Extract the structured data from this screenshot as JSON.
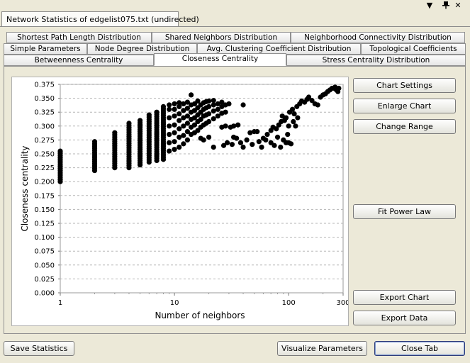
{
  "window": {
    "tab_title": "Network Statistics of edgelist075.txt (undirected)",
    "controls": {
      "menu": "▼",
      "pin": "📌",
      "close": "✕"
    }
  },
  "tabs": {
    "row1": [
      "Shortest Path Length Distribution",
      "Shared Neighbors Distribution",
      "Neighborhood Connectivity Distribution"
    ],
    "row2": [
      "Simple Parameters",
      "Node Degree Distribution",
      "Avg. Clustering Coefficient Distribution",
      "Topological Coefficients"
    ],
    "row3": [
      "Betweenness Centrality",
      "Closeness Centrality",
      "Stress Centrality Distribution"
    ],
    "active": "Closeness Centrality"
  },
  "side_buttons": {
    "chart_settings": "Chart Settings",
    "enlarge_chart": "Enlarge Chart",
    "change_range": "Change Range",
    "fit_power_law": "Fit Power Law",
    "export_chart": "Export Chart",
    "export_data": "Export Data"
  },
  "bottom_buttons": {
    "save_statistics": "Save Statistics",
    "visualize_parameters": "Visualize Parameters",
    "close_tab": "Close Tab"
  },
  "chart_data": {
    "type": "scatter",
    "title": "",
    "xlabel": "Number of neighbors",
    "ylabel": "Closeness centrality",
    "xscale": "log",
    "xlim": [
      1,
      300
    ],
    "ylim": [
      0,
      0.375
    ],
    "xticks": [
      "1",
      "10",
      "100",
      "300"
    ],
    "yticks": [
      "0.000",
      "0.025",
      "0.050",
      "0.075",
      "0.100",
      "0.125",
      "0.150",
      "0.175",
      "0.200",
      "0.225",
      "0.250",
      "0.275",
      "0.300",
      "0.325",
      "0.350",
      "0.375"
    ],
    "grid": "horizontal dashed",
    "point_color": "#000000",
    "columns": [
      {
        "x": 1,
        "ymin": 0.2,
        "ymax": 0.255
      },
      {
        "x": 2,
        "ymin": 0.22,
        "ymax": 0.272
      },
      {
        "x": 3,
        "ymin": 0.225,
        "ymax": 0.288
      },
      {
        "x": 4,
        "ymin": 0.225,
        "ymax": 0.305
      },
      {
        "x": 5,
        "ymin": 0.23,
        "ymax": 0.31
      },
      {
        "x": 6,
        "ymin": 0.235,
        "ymax": 0.32
      },
      {
        "x": 7,
        "ymin": 0.238,
        "ymax": 0.325
      },
      {
        "x": 8,
        "ymin": 0.24,
        "ymax": 0.335
      }
    ],
    "points": [
      [
        9,
        0.255
      ],
      [
        9,
        0.27
      ],
      [
        9,
        0.285
      ],
      [
        9,
        0.3
      ],
      [
        9,
        0.315
      ],
      [
        9,
        0.33
      ],
      [
        9,
        0.338
      ],
      [
        10,
        0.258
      ],
      [
        10,
        0.272
      ],
      [
        10,
        0.288
      ],
      [
        10,
        0.302
      ],
      [
        10,
        0.318
      ],
      [
        10,
        0.33
      ],
      [
        10,
        0.34
      ],
      [
        11,
        0.262
      ],
      [
        11,
        0.28
      ],
      [
        11,
        0.295
      ],
      [
        11,
        0.31
      ],
      [
        11,
        0.322
      ],
      [
        11,
        0.335
      ],
      [
        11,
        0.342
      ],
      [
        12,
        0.268
      ],
      [
        12,
        0.283
      ],
      [
        12,
        0.3
      ],
      [
        12,
        0.315
      ],
      [
        12,
        0.328
      ],
      [
        12,
        0.34
      ],
      [
        13,
        0.275
      ],
      [
        13,
        0.29
      ],
      [
        13,
        0.305
      ],
      [
        13,
        0.318
      ],
      [
        13,
        0.332
      ],
      [
        13,
        0.343
      ],
      [
        14,
        0.285
      ],
      [
        14,
        0.298
      ],
      [
        14,
        0.312
      ],
      [
        14,
        0.325
      ],
      [
        14,
        0.338
      ],
      [
        14,
        0.356
      ],
      [
        15,
        0.288
      ],
      [
        15,
        0.302
      ],
      [
        15,
        0.315
      ],
      [
        15,
        0.328
      ],
      [
        15,
        0.34
      ],
      [
        16,
        0.292
      ],
      [
        16,
        0.308
      ],
      [
        16,
        0.32
      ],
      [
        16,
        0.333
      ],
      [
        16,
        0.345
      ],
      [
        17,
        0.298
      ],
      [
        17,
        0.312
      ],
      [
        17,
        0.325
      ],
      [
        17,
        0.338
      ],
      [
        18,
        0.302
      ],
      [
        18,
        0.318
      ],
      [
        18,
        0.33
      ],
      [
        18,
        0.342
      ],
      [
        19,
        0.305
      ],
      [
        19,
        0.32
      ],
      [
        19,
        0.333
      ],
      [
        19,
        0.344
      ],
      [
        20,
        0.308
      ],
      [
        20,
        0.322
      ],
      [
        20,
        0.335
      ],
      [
        20,
        0.345
      ],
      [
        22,
        0.313
      ],
      [
        22,
        0.327
      ],
      [
        22,
        0.338
      ],
      [
        22,
        0.346
      ],
      [
        24,
        0.318
      ],
      [
        24,
        0.33
      ],
      [
        24,
        0.34
      ],
      [
        26,
        0.323
      ],
      [
        26,
        0.335
      ],
      [
        26,
        0.343
      ],
      [
        28,
        0.325
      ],
      [
        28,
        0.338
      ],
      [
        18,
        0.275
      ],
      [
        20,
        0.28
      ],
      [
        17,
        0.278
      ],
      [
        26,
        0.298
      ],
      [
        28,
        0.3
      ],
      [
        31,
        0.298
      ],
      [
        33,
        0.3
      ],
      [
        36,
        0.302
      ],
      [
        30,
        0.34
      ],
      [
        40,
        0.338
      ],
      [
        33,
        0.28
      ],
      [
        35,
        0.278
      ],
      [
        38,
        0.27
      ],
      [
        22,
        0.262
      ],
      [
        27,
        0.265
      ],
      [
        29,
        0.27
      ],
      [
        32,
        0.267
      ],
      [
        40,
        0.262
      ],
      [
        43,
        0.275
      ],
      [
        46,
        0.288
      ],
      [
        50,
        0.29
      ],
      [
        53,
        0.29
      ],
      [
        48,
        0.267
      ],
      [
        55,
        0.272
      ],
      [
        60,
        0.278
      ],
      [
        65,
        0.285
      ],
      [
        58,
        0.262
      ],
      [
        63,
        0.275
      ],
      [
        70,
        0.292
      ],
      [
        73,
        0.298
      ],
      [
        78,
        0.295
      ],
      [
        82,
        0.302
      ],
      [
        86,
        0.308
      ],
      [
        88,
        0.318
      ],
      [
        92,
        0.31
      ],
      [
        95,
        0.315
      ],
      [
        70,
        0.27
      ],
      [
        75,
        0.265
      ],
      [
        80,
        0.28
      ],
      [
        90,
        0.275
      ],
      [
        98,
        0.285
      ],
      [
        85,
        0.262
      ],
      [
        95,
        0.27
      ],
      [
        100,
        0.27
      ],
      [
        105,
        0.268
      ],
      [
        102,
        0.325
      ],
      [
        108,
        0.33
      ],
      [
        112,
        0.322
      ],
      [
        118,
        0.335
      ],
      [
        125,
        0.34
      ],
      [
        130,
        0.345
      ],
      [
        138,
        0.343
      ],
      [
        145,
        0.348
      ],
      [
        150,
        0.352
      ],
      [
        100,
        0.3
      ],
      [
        110,
        0.308
      ],
      [
        115,
        0.3
      ],
      [
        120,
        0.315
      ],
      [
        160,
        0.346
      ],
      [
        170,
        0.34
      ],
      [
        180,
        0.338
      ],
      [
        190,
        0.352
      ],
      [
        200,
        0.356
      ],
      [
        210,
        0.358
      ],
      [
        220,
        0.362
      ],
      [
        230,
        0.365
      ],
      [
        240,
        0.368
      ],
      [
        250,
        0.368
      ],
      [
        255,
        0.37
      ],
      [
        262,
        0.365
      ],
      [
        270,
        0.362
      ],
      [
        275,
        0.368
      ]
    ]
  }
}
